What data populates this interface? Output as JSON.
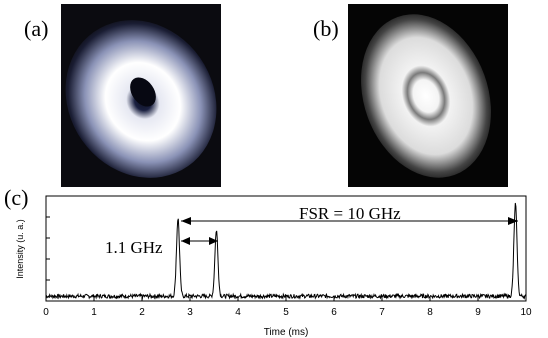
{
  "panels": {
    "a_label": "(a)",
    "b_label": "(b)",
    "c_label": "(c)"
  },
  "images": {
    "a": {
      "description_icon": "donut-beam-profile-image",
      "bg": "#0b0b10"
    },
    "b": {
      "description_icon": "bright-ring-beam-profile-image",
      "bg": "#050505"
    }
  },
  "annotations": {
    "fsr": "FSR = 10 GHz",
    "spacing": "1.1 GHz"
  },
  "chart_data": {
    "type": "line",
    "xlabel": "Time (ms)",
    "ylabel": "Intensity (u. a.)",
    "xlim": [
      0,
      10
    ],
    "xticks": [
      "0",
      "1",
      "2",
      "3",
      "4",
      "5",
      "6",
      "7",
      "8",
      "9",
      "10"
    ],
    "ylim": [
      0,
      1
    ],
    "grid": false,
    "series": [
      {
        "peaks": [
          {
            "x": 2.75,
            "y": 0.85
          },
          {
            "x": 3.55,
            "y": 0.73
          },
          {
            "x": 9.78,
            "y": 1.0
          }
        ],
        "baseline": 0.05
      }
    ]
  }
}
